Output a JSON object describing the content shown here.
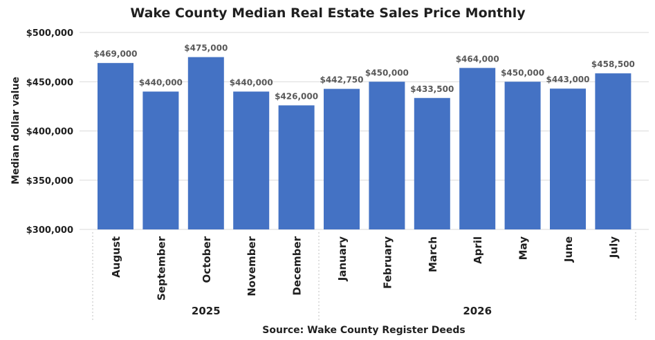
{
  "chart_data": {
    "type": "bar",
    "title": "Wake County Median Real Estate Sales Price Monthly",
    "ylabel": "Median dollar value",
    "source": "Source: Wake County Register Deeds",
    "ylim": [
      300000,
      500000
    ],
    "yticks": [
      300000,
      350000,
      400000,
      450000,
      500000
    ],
    "ytick_labels": [
      "$300,000",
      "$350,000",
      "$400,000",
      "$450,000",
      "$500,000"
    ],
    "grid": true,
    "bar_color": "#4472c4",
    "categories": [
      "August",
      "September",
      "October",
      "November",
      "December",
      "January",
      "February",
      "March",
      "April",
      "May",
      "June",
      "July"
    ],
    "values": [
      469000,
      440000,
      475000,
      440000,
      426000,
      442750,
      450000,
      433500,
      464000,
      450000,
      443000,
      458500
    ],
    "data_labels": [
      "$469,000",
      "$440,000",
      "$475,000",
      "$440,000",
      "$426,000",
      "$442,750",
      "$450,000",
      "$433,500",
      "$464,000",
      "$450,000",
      "$443,000",
      "$458,500"
    ],
    "groups": [
      {
        "label": "2025",
        "start": 0,
        "end": 4
      },
      {
        "label": "2026",
        "start": 5,
        "end": 11
      }
    ]
  }
}
